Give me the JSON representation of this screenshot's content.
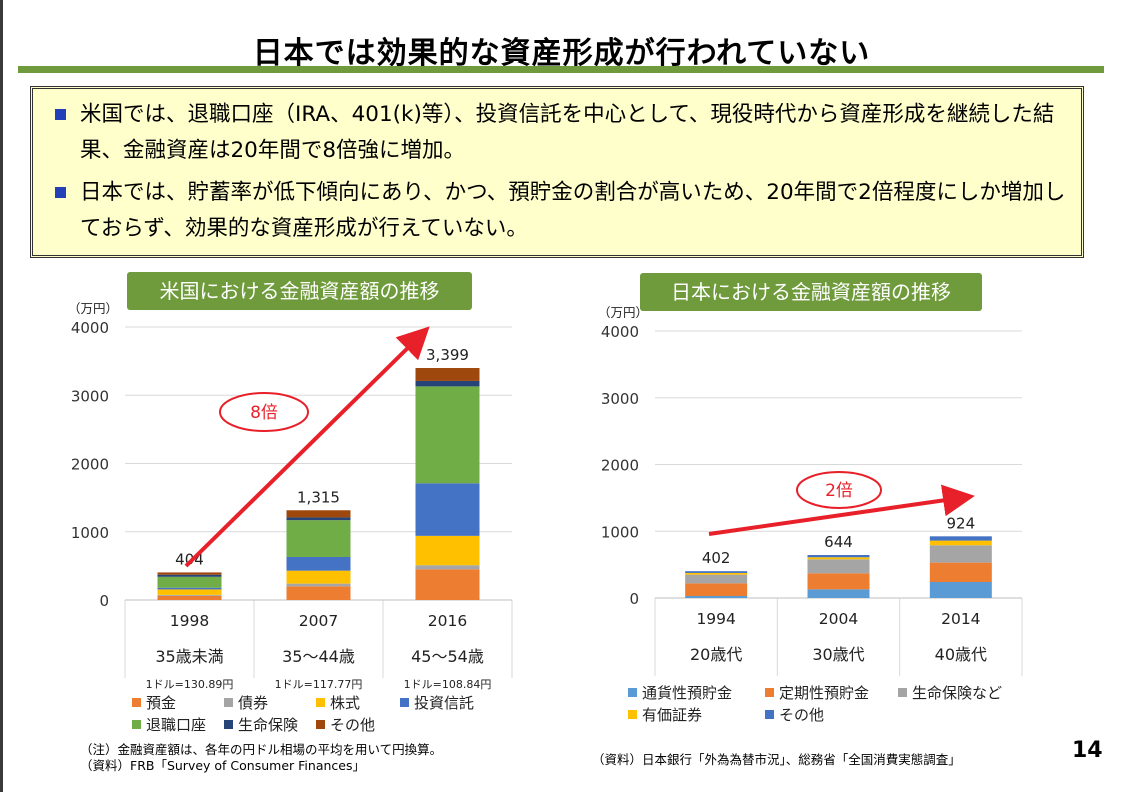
{
  "title": "日本では効果的な資産形成が行われていない",
  "bullets": [
    "米国では、退職口座（IRA、401(k)等）、投資信託を中心として、現役時代から資産形成を継続した結果、金融資産は20年間で8倍強に増加。",
    "日本では、貯蓄率が低下傾向にあり、かつ、預貯金の割合が高いため、20年間で2倍程度にしか増加しておらず、効果的な資産形成が行えていない。"
  ],
  "page_number": "14",
  "chart_data": [
    {
      "type": "bar",
      "stacked": true,
      "title": "米国における金融資産額の推移",
      "unit_label": "（万円）",
      "categories": [
        "1998",
        "2007",
        "2016"
      ],
      "age_labels": [
        "35歳未満",
        "35～44歳",
        "45～54歳"
      ],
      "exchange_rates": [
        "1ドル=130.89円",
        "1ドル=117.77円",
        "1ドル=108.84円"
      ],
      "totals": [
        404,
        1315,
        3399
      ],
      "total_labels": [
        "404",
        "1,315",
        "3,399"
      ],
      "ylim": [
        0,
        4000
      ],
      "yticks": [
        0,
        1000,
        2000,
        3000,
        4000
      ],
      "series": [
        {
          "name": "預金",
          "color": "#ed7d31",
          "values": [
            60,
            200,
            450
          ]
        },
        {
          "name": "債券",
          "color": "#a5a5a5",
          "values": [
            15,
            40,
            60
          ]
        },
        {
          "name": "株式",
          "color": "#ffc000",
          "values": [
            80,
            190,
            430
          ]
        },
        {
          "name": "投資信託",
          "color": "#4472c4",
          "values": [
            25,
            200,
            770
          ]
        },
        {
          "name": "退職口座",
          "color": "#70ad47",
          "values": [
            160,
            540,
            1420
          ]
        },
        {
          "name": "生命保険",
          "color": "#264478",
          "values": [
            30,
            40,
            80
          ]
        },
        {
          "name": "その他",
          "color": "#9e480e",
          "values": [
            34,
            105,
            189
          ]
        }
      ],
      "annotation": "8倍"
    },
    {
      "type": "bar",
      "stacked": true,
      "title": "日本における金融資産額の推移",
      "unit_label": "（万円）",
      "categories": [
        "1994",
        "2004",
        "2014"
      ],
      "age_labels": [
        "20歳代",
        "30歳代",
        "40歳代"
      ],
      "totals": [
        402,
        644,
        924
      ],
      "total_labels": [
        "402",
        "644",
        "924"
      ],
      "ylim": [
        0,
        4000
      ],
      "yticks": [
        0,
        1000,
        2000,
        3000,
        4000
      ],
      "series": [
        {
          "name": "通貨性預貯金",
          "color": "#5b9bd5",
          "values": [
            30,
            130,
            240
          ]
        },
        {
          "name": "定期性預貯金",
          "color": "#ed7d31",
          "values": [
            190,
            240,
            290
          ]
        },
        {
          "name": "生命保険など",
          "color": "#a5a5a5",
          "values": [
            130,
            210,
            260
          ]
        },
        {
          "name": "有価証券",
          "color": "#ffc000",
          "values": [
            25,
            30,
            70
          ]
        },
        {
          "name": "その他",
          "color": "#4472c4",
          "values": [
            27,
            34,
            64
          ]
        }
      ],
      "annotation": "2倍"
    }
  ],
  "footnotes": {
    "us_note": "（注）金融資産額は、各年の円ドル相場の平均を用いて円換算。",
    "us_source": "（資料）FRB「Survey of Consumer Finances」",
    "jp_source": "（資料）日本銀行「外為為替市況」、総務省「全国消費実態調査」"
  }
}
